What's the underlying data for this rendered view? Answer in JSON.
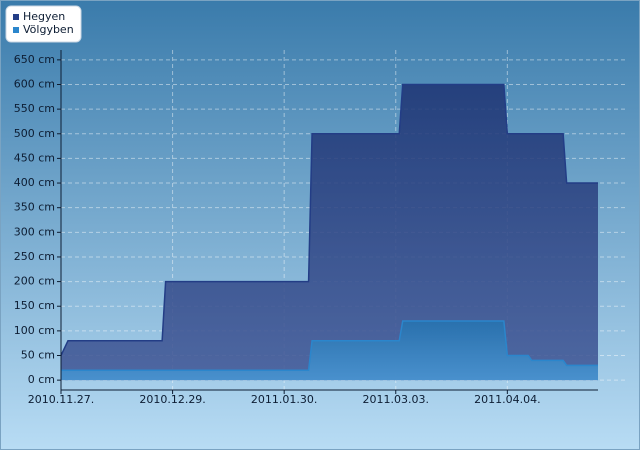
{
  "chart_data": {
    "type": "area",
    "series": [
      {
        "name": "Hegyen",
        "color": "#233d86",
        "x": [
          "2010-11-27",
          "2010-11-29",
          "2010-12-26",
          "2010-12-27",
          "2011-02-06",
          "2011-02-07",
          "2011-03-04",
          "2011-03-05",
          "2011-04-03",
          "2011-04-04",
          "2011-04-20",
          "2011-04-21",
          "2011-04-30"
        ],
        "values": [
          50,
          80,
          80,
          200,
          200,
          500,
          500,
          600,
          600,
          500,
          500,
          400,
          400
        ]
      },
      {
        "name": "Völgyben",
        "color": "#2b86cc",
        "x": [
          "2010-11-27",
          "2011-02-06",
          "2011-02-07",
          "2011-03-04",
          "2011-03-05",
          "2011-04-03",
          "2011-04-04",
          "2011-04-10",
          "2011-04-11",
          "2011-04-20",
          "2011-04-21",
          "2011-04-30"
        ],
        "values": [
          20,
          20,
          80,
          80,
          120,
          120,
          50,
          50,
          40,
          40,
          30,
          30
        ]
      }
    ],
    "xlim": [
      "2010-11-27",
      "2011-04-30"
    ],
    "xticks": [
      {
        "value": "2010-11-27",
        "label": "2010.11.27."
      },
      {
        "value": "2010-12-29",
        "label": "2010.12.29."
      },
      {
        "value": "2011-01-30",
        "label": "2011.01.30."
      },
      {
        "value": "2011-03-03",
        "label": "2011.03.03."
      },
      {
        "value": "2011-04-04",
        "label": "2011.04.04."
      }
    ],
    "ylim": [
      -20,
      670
    ],
    "yticks": [
      {
        "value": 0,
        "label": "0 cm"
      },
      {
        "value": 50,
        "label": "50 cm"
      },
      {
        "value": 100,
        "label": "100 cm"
      },
      {
        "value": 150,
        "label": "150 cm"
      },
      {
        "value": 200,
        "label": "200 cm"
      },
      {
        "value": 250,
        "label": "250 cm"
      },
      {
        "value": 300,
        "label": "300 cm"
      },
      {
        "value": 350,
        "label": "350 cm"
      },
      {
        "value": 400,
        "label": "400 cm"
      },
      {
        "value": 450,
        "label": "450 cm"
      },
      {
        "value": 500,
        "label": "500 cm"
      },
      {
        "value": 550,
        "label": "550 cm"
      },
      {
        "value": 600,
        "label": "600 cm"
      },
      {
        "value": 650,
        "label": "650 cm"
      }
    ],
    "grid": true
  }
}
